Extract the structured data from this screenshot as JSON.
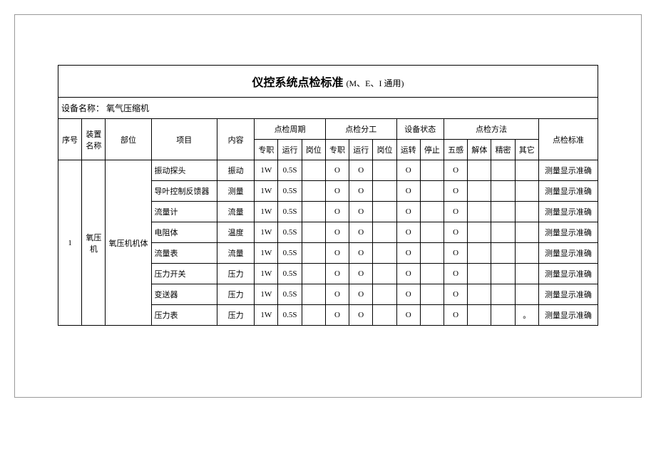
{
  "title_main": "仪控系统点检标准",
  "title_sub": "(M、E、I 通用)",
  "equip_label": "设备名称：",
  "equip_name": "氧气压缩机",
  "headers": {
    "seq": "序号",
    "unit": "装置名称",
    "part": "部位",
    "item": "项目",
    "content": "内容",
    "cycle_group": "点检周期",
    "cycle_sub": [
      "专职",
      "运行",
      "岗位"
    ],
    "assign_group": "点检分工",
    "assign_sub": [
      "专职",
      "运行",
      "岗位"
    ],
    "state_group": "设备状态",
    "state_sub": [
      "运转",
      "停止"
    ],
    "method_group": "点检方法",
    "method_sub": [
      "五感",
      "解体",
      "精密",
      "其它"
    ],
    "std": "点检标准"
  },
  "seq": "1",
  "unit_name": "氧压机",
  "part_name": "氧压机机体",
  "std_value": "测量显示准确",
  "rows": [
    {
      "item": "振动探头",
      "content": "振动",
      "c1": "1W",
      "c2": "0.5S",
      "c3": "",
      "a1": "O",
      "a2": "O",
      "a3": "",
      "s1": "O",
      "s2": "",
      "m1": "O",
      "m2": "",
      "m3": "",
      "m4": ""
    },
    {
      "item": "导叶控制反馈器",
      "content": "测量",
      "c1": "1W",
      "c2": "0.5S",
      "c3": "",
      "a1": "O",
      "a2": "O",
      "a3": "",
      "s1": "O",
      "s2": "",
      "m1": "O",
      "m2": "",
      "m3": "",
      "m4": ""
    },
    {
      "item": "流量计",
      "content": "流量",
      "c1": "1W",
      "c2": "0.5S",
      "c3": "",
      "a1": "O",
      "a2": "O",
      "a3": "",
      "s1": "O",
      "s2": "",
      "m1": "O",
      "m2": "",
      "m3": "",
      "m4": ""
    },
    {
      "item": "电阻体",
      "content": "温度",
      "c1": "1W",
      "c2": "0.5S",
      "c3": "",
      "a1": "O",
      "a2": "O",
      "a3": "",
      "s1": "O",
      "s2": "",
      "m1": "O",
      "m2": "",
      "m3": "",
      "m4": ""
    },
    {
      "item": "流量表",
      "content": "流量",
      "c1": "1W",
      "c2": "0.5S",
      "c3": "",
      "a1": "O",
      "a2": "O",
      "a3": "",
      "s1": "O",
      "s2": "",
      "m1": "O",
      "m2": "",
      "m3": "",
      "m4": ""
    },
    {
      "item": "压力开关",
      "content": "压力",
      "c1": "1W",
      "c2": "0.5S",
      "c3": "",
      "a1": "O",
      "a2": "O",
      "a3": "",
      "s1": "O",
      "s2": "",
      "m1": "O",
      "m2": "",
      "m3": "",
      "m4": ""
    },
    {
      "item": "变送器",
      "content": "压力",
      "c1": "1W",
      "c2": "0.5S",
      "c3": "",
      "a1": "O",
      "a2": "O",
      "a3": "",
      "s1": "O",
      "s2": "",
      "m1": "O",
      "m2": "",
      "m3": "",
      "m4": ""
    },
    {
      "item": "压力表",
      "content": "压力",
      "c1": "1W",
      "c2": "0.5S",
      "c3": "",
      "a1": "O",
      "a2": "O",
      "a3": "",
      "s1": "O",
      "s2": "",
      "m1": "O",
      "m2": "",
      "m3": "",
      "m4": "。"
    }
  ]
}
